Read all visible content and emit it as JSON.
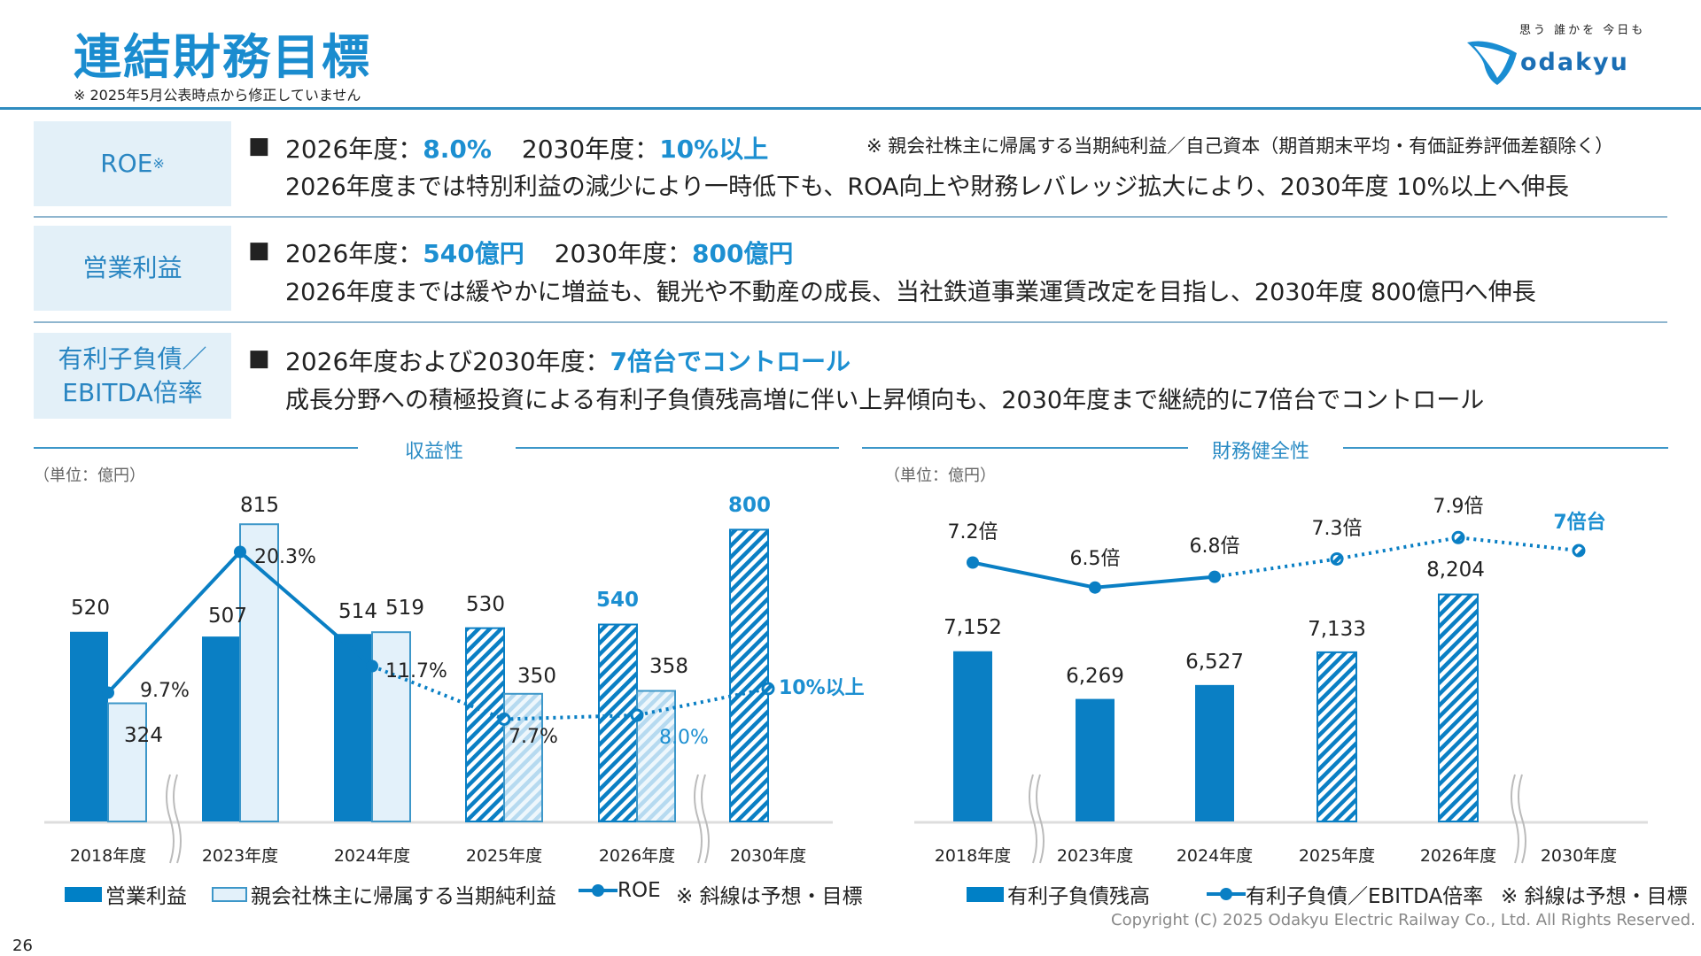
{
  "header": {
    "title": "連結財務目標",
    "note": "※ 2025年5月公表時点から修正していません",
    "logo": {
      "tagline": "思う 誰かを 今日も",
      "brand": "odakyu"
    }
  },
  "targets": [
    {
      "label": "ROE",
      "label_sup": "※",
      "line1_a": "2026年度：",
      "line1_b": "8.0%",
      "line1_c": "2030年度：",
      "line1_d": "10%以上",
      "note": "※ 親会社株主に帰属する当期純利益／自己資本（期首期末平均・有価証券評価差額除く）",
      "line2": "2026年度までは特別利益の減少により一時低下も、ROA向上や財務レバレッジ拡大により、2030年度 10%以上へ伸長"
    },
    {
      "label": "営業利益",
      "line1_a": "2026年度：",
      "line1_b": "540億円",
      "line1_c": "2030年度：",
      "line1_d": "800億円",
      "line2": "2026年度までは緩やかに増益も、観光や不動産の成長、当社鉄道事業運賃改定を目指し、2030年度 800億円へ伸長"
    },
    {
      "label": "有利子負債／",
      "label2": "EBITDA倍率",
      "line1_a": "2026年度および2030年度：",
      "line1_b": "7倍台でコントロール",
      "line2": "成長分野への積極投資による有利子負債残高増に伴い上昇傾向も、2030年度まで継続的に7倍台でコントロール"
    }
  ],
  "bullet": "■",
  "colors": {
    "primary": "#0080c6",
    "light": "#e3f1fa",
    "accent": "#1c8fd1",
    "label_box": "#e3f0f8"
  },
  "chart_data": [
    {
      "type": "bar",
      "title": "収益性",
      "unit": "（単位：億円）",
      "categories": [
        "2018年度",
        "2023年度",
        "2024年度",
        "2025年度",
        "2026年度",
        "2030年度"
      ],
      "forecast_from_index": 3,
      "series": [
        {
          "name": "営業利益",
          "type": "bar",
          "values": [
            520,
            507,
            514,
            530,
            540,
            800
          ],
          "labels": [
            "520",
            "507",
            "514",
            "530",
            "540",
            "800"
          ]
        },
        {
          "name": "親会社株主に帰属する当期純利益",
          "type": "bar",
          "values": [
            324,
            815,
            519,
            350,
            358,
            null
          ],
          "labels": [
            "324",
            "815",
            "519",
            "350",
            "358",
            ""
          ]
        },
        {
          "name": "ROE",
          "type": "line",
          "unit": "%",
          "values": [
            9.7,
            20.3,
            11.7,
            7.7,
            8.0,
            10
          ],
          "labels": [
            "9.7%",
            "20.3%",
            "11.7%",
            "7.7%",
            "8.0%",
            "10%以上"
          ]
        }
      ],
      "legend_note": "※ 斜線は予想・目標",
      "legend": "bottom",
      "axis_breaks": [
        "2018年度-2023年度",
        "2026年度-2030年度"
      ]
    },
    {
      "type": "bar",
      "title": "財務健全性",
      "unit": "（単位：億円）",
      "categories": [
        "2018年度",
        "2023年度",
        "2024年度",
        "2025年度",
        "2026年度",
        "2030年度"
      ],
      "forecast_from_index": 3,
      "series": [
        {
          "name": "有利子負債残高",
          "type": "bar",
          "values": [
            7152,
            6269,
            6527,
            7133,
            8204,
            null
          ],
          "labels": [
            "7,152",
            "6,269",
            "6,527",
            "7,133",
            "8,204",
            ""
          ]
        },
        {
          "name": "有利子負債／EBITDA倍率",
          "type": "line",
          "values": [
            7.2,
            6.5,
            6.8,
            7.3,
            7.9,
            null
          ],
          "labels": [
            "7.2倍",
            "6.5倍",
            "6.8倍",
            "7.3倍",
            "7.9倍",
            "7倍台"
          ]
        }
      ],
      "legend_note": "※ 斜線は予想・目標",
      "legend": "bottom",
      "axis_breaks": [
        "2018年度-2023年度",
        "2026年度-2030年度"
      ]
    }
  ],
  "footer": {
    "copyright": "Copyright (C) 2025 Odakyu Electric Railway Co., Ltd. All Rights Reserved.",
    "page": "26"
  }
}
